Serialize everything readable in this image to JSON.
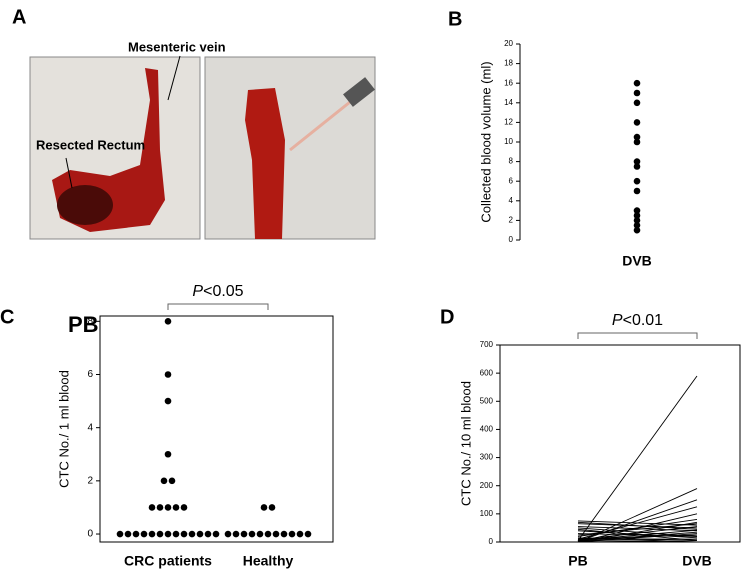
{
  "panel_a": {
    "label": "A",
    "annotations": [
      "Mesenteric vein",
      "Resected Rectum"
    ]
  },
  "chart_data": [
    {
      "type": "strip",
      "panel": "B",
      "ylabel": "Collected blood volume (ml)",
      "categories": [
        "DVB"
      ],
      "values": [
        [
          16,
          15,
          14,
          12,
          10.5,
          10,
          8,
          7.5,
          6,
          5,
          3,
          2.5,
          2,
          1.5,
          1
        ]
      ],
      "ylim": [
        0,
        20
      ],
      "yticks": [
        0,
        2,
        4,
        6,
        8,
        10,
        12,
        14,
        16,
        18,
        20
      ],
      "frame": "left",
      "tick_font": 8
    },
    {
      "type": "strip",
      "panel": "C",
      "title": "PB",
      "annotation": "P<0.05",
      "ylabel": "CTC No./ 1 ml blood",
      "categories": [
        "CRC patients",
        "Healthy"
      ],
      "values": [
        [
          8,
          6,
          5,
          3,
          2,
          2,
          1,
          1,
          1,
          1,
          1,
          0,
          0,
          0,
          0,
          0,
          0,
          0,
          0,
          0,
          0,
          0,
          0,
          0
        ],
        [
          1,
          1,
          0,
          0,
          0,
          0,
          0,
          0,
          0,
          0,
          0,
          0,
          0
        ]
      ],
      "ylim": [
        -0.3,
        8.2
      ],
      "yticks": [
        0,
        2,
        4,
        6,
        8
      ],
      "frame": "box",
      "tick_font": 10
    },
    {
      "type": "paired",
      "panel": "D",
      "annotation": "P<0.01",
      "ylabel": "CTC No./ 10 ml blood",
      "categories": [
        "PB",
        "DVB"
      ],
      "pairs": [
        [
          5,
          590
        ],
        [
          0,
          190
        ],
        [
          2,
          150
        ],
        [
          10,
          125
        ],
        [
          0,
          100
        ],
        [
          20,
          80
        ],
        [
          75,
          60
        ],
        [
          65,
          50
        ],
        [
          55,
          40
        ],
        [
          70,
          45
        ],
        [
          0,
          30
        ],
        [
          10,
          25
        ],
        [
          30,
          20
        ],
        [
          40,
          15
        ],
        [
          5,
          10
        ],
        [
          0,
          5
        ],
        [
          15,
          0
        ],
        [
          25,
          65
        ],
        [
          0,
          70
        ],
        [
          8,
          55
        ],
        [
          3,
          35
        ],
        [
          50,
          20
        ],
        [
          12,
          10
        ],
        [
          0,
          0
        ],
        [
          6,
          42
        ],
        [
          45,
          5
        ]
      ],
      "ylim": [
        0,
        700
      ],
      "yticks": [
        0,
        100,
        200,
        300,
        400,
        500,
        600,
        700
      ],
      "frame": "box",
      "tick_font": 8
    }
  ]
}
